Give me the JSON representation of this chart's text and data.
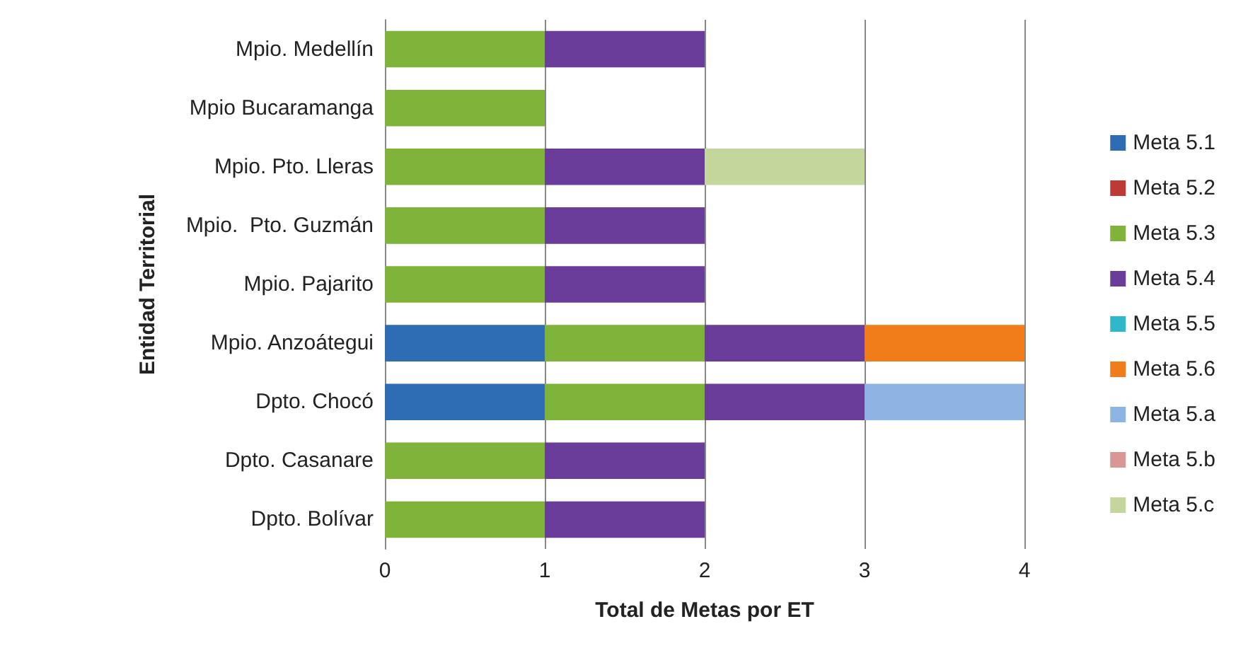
{
  "chart_data": {
    "type": "bar",
    "orientation": "horizontal",
    "stacked": true,
    "xlabel": "Total de Metas por ET",
    "ylabel": "Entidad Territorial",
    "categories": [
      "Mpio. Medellín",
      "Mpio Bucaramanga",
      "Mpio. Pto. Lleras",
      "Mpio.  Pto. Guzmán",
      "Mpio. Pajarito",
      "Mpio. Anzoátegui",
      "Dpto. Chocó",
      "Dpto. Casanare",
      "Dpto. Bolívar"
    ],
    "series": [
      {
        "name": "Meta 5.1",
        "color": "#2e6db4",
        "values": [
          0,
          0,
          0,
          0,
          0,
          1,
          1,
          0,
          0
        ]
      },
      {
        "name": "Meta 5.2",
        "color": "#be3a34",
        "values": [
          0,
          0,
          0,
          0,
          0,
          0,
          0,
          0,
          0
        ]
      },
      {
        "name": "Meta 5.3",
        "color": "#7fb33a",
        "values": [
          1,
          1,
          1,
          1,
          1,
          1,
          1,
          1,
          1
        ]
      },
      {
        "name": "Meta 5.4",
        "color": "#6a3d9a",
        "values": [
          1,
          0,
          1,
          1,
          1,
          1,
          1,
          1,
          1
        ]
      },
      {
        "name": "Meta 5.5",
        "color": "#2fb8cc",
        "values": [
          0,
          0,
          0,
          0,
          0,
          0,
          0,
          0,
          0
        ]
      },
      {
        "name": "Meta 5.6",
        "color": "#f07c1a",
        "values": [
          0,
          0,
          0,
          0,
          0,
          1,
          0,
          0,
          0
        ]
      },
      {
        "name": "Meta 5.a",
        "color": "#8eb4e3",
        "values": [
          0,
          0,
          0,
          0,
          0,
          0,
          1,
          0,
          0
        ]
      },
      {
        "name": "Meta 5.b",
        "color": "#d99694",
        "values": [
          0,
          0,
          0,
          0,
          0,
          0,
          0,
          0,
          0
        ]
      },
      {
        "name": "Meta 5.c",
        "color": "#c3d69b",
        "values": [
          0,
          0,
          1,
          0,
          0,
          0,
          0,
          0,
          0
        ]
      }
    ],
    "xlim": [
      0,
      4
    ],
    "xticks": [
      0,
      1,
      2,
      3,
      4
    ],
    "grid": "x",
    "legend": "right"
  }
}
